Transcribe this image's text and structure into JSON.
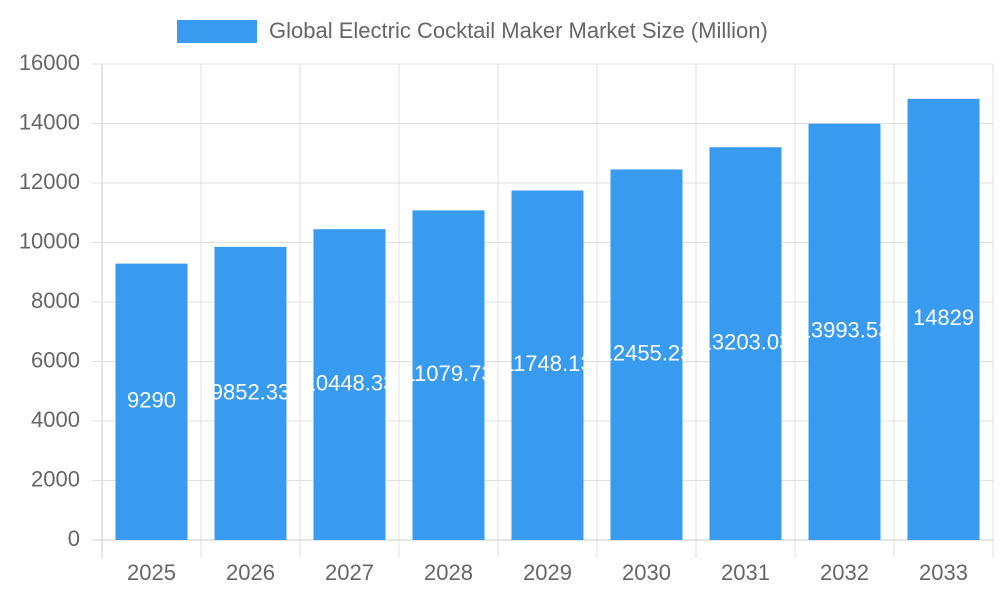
{
  "chart_data": {
    "type": "bar",
    "categories": [
      "2025",
      "2026",
      "2027",
      "2028",
      "2029",
      "2030",
      "2031",
      "2032",
      "2033"
    ],
    "series": [
      {
        "name": "Global Electric Cocktail Maker Market Size (Million)",
        "color": "#389bef",
        "values": [
          9290,
          9852.33,
          10448.33,
          11079.73,
          11748.13,
          12455.23,
          13203.03,
          13993.53,
          14829
        ]
      }
    ],
    "ylim": [
      0,
      16000
    ],
    "yticks": [
      0,
      2000,
      4000,
      6000,
      8000,
      10000,
      12000,
      14000,
      16000
    ],
    "grid": true,
    "legend": "top",
    "data_labels": true
  }
}
